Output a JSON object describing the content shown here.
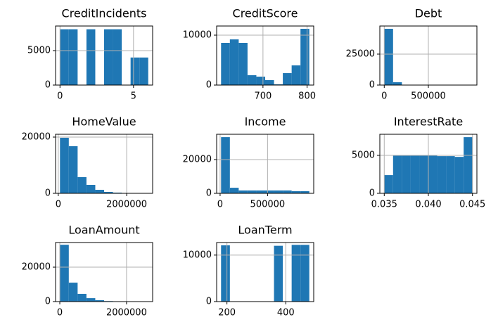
{
  "chart_data": [
    {
      "type": "histogram",
      "title": "CreditIncidents",
      "color": "#1f77b4",
      "grid": true,
      "bins": [
        0,
        0.6,
        1.2,
        1.8,
        2.4,
        3.0,
        3.6,
        4.2,
        4.8,
        5.4,
        6.0
      ],
      "values": [
        8100,
        8100,
        0,
        8100,
        0,
        8100,
        8100,
        0,
        4000,
        4000
      ],
      "xlim": [
        -0.3,
        6.3
      ],
      "ylim": [
        0,
        8571
      ],
      "xticks": [
        0,
        5
      ],
      "yticks": [
        0,
        5000
      ]
    },
    {
      "type": "histogram",
      "title": "CreditScore",
      "color": "#1f77b4",
      "grid": true,
      "bins": [
        605,
        625,
        645,
        665,
        685,
        705,
        725,
        745,
        765,
        785,
        805
      ],
      "values": [
        8450,
        9150,
        8450,
        1970,
        1690,
        990,
        140,
        2390,
        3940,
        11270
      ],
      "xlim": [
        595,
        815
      ],
      "ylim": [
        0,
        11830
      ],
      "xticks": [
        700,
        800
      ],
      "yticks": [
        0,
        10000
      ]
    },
    {
      "type": "histogram",
      "title": "Debt",
      "color": "#1f77b4",
      "grid": true,
      "bins": [
        0,
        100000,
        200000,
        300000,
        400000,
        500000,
        600000,
        700000,
        800000,
        900000,
        1000000
      ],
      "values": [
        45450,
        2300,
        200,
        50,
        20,
        10,
        5,
        2,
        1,
        1
      ],
      "xlim": [
        -50000,
        1050000
      ],
      "ylim": [
        0,
        47700
      ],
      "xticks": [
        0,
        500000
      ],
      "yticks": [
        0,
        25000
      ]
    },
    {
      "type": "histogram",
      "title": "HomeValue",
      "color": "#1f77b4",
      "grid": true,
      "bins": [
        50000,
        308000,
        566000,
        824000,
        1082000,
        1340000,
        1598000,
        1856000,
        2114000,
        2372000,
        2630000
      ],
      "values": [
        19750,
        16750,
        5750,
        3000,
        1250,
        500,
        250,
        100,
        50,
        20
      ],
      "xlim": [
        -79000,
        2759000
      ],
      "ylim": [
        0,
        21000
      ],
      "xticks": [
        0,
        2000000
      ],
      "yticks": [
        0,
        20000
      ]
    },
    {
      "type": "histogram",
      "title": "Income",
      "color": "#1f77b4",
      "grid": true,
      "bins": [
        10000,
        103000,
        196000,
        289000,
        382000,
        475000,
        568000,
        661000,
        754000,
        847000,
        940000
      ],
      "values": [
        33300,
        3300,
        1700,
        1700,
        1700,
        1700,
        1700,
        1700,
        1250,
        1250
      ],
      "xlim": [
        -36500,
        986500
      ],
      "ylim": [
        0,
        35000
      ],
      "xticks": [
        0,
        500000
      ],
      "yticks": [
        0,
        20000
      ]
    },
    {
      "type": "histogram",
      "title": "InterestRate",
      "color": "#1f77b4",
      "grid": true,
      "bins": [
        0.035,
        0.036,
        0.037,
        0.038,
        0.039,
        0.04,
        0.041,
        0.042,
        0.043,
        0.044,
        0.045
      ],
      "values": [
        2400,
        5000,
        5000,
        5000,
        5000,
        5000,
        4900,
        4900,
        4800,
        7400
      ],
      "xlim": [
        0.0345,
        0.0455
      ],
      "ylim": [
        0,
        7780
      ],
      "xticks": [
        0.035,
        {
          "value": 0.04,
          "label": "0.040"
        },
        0.045
      ],
      "yticks": [
        0,
        5000
      ]
    },
    {
      "type": "histogram",
      "title": "LoanAmount",
      "color": "#1f77b4",
      "grid": true,
      "bins": [
        5000,
        269500,
        534000,
        798500,
        1063000,
        1327500,
        1592000,
        1856500,
        2121000,
        2385500,
        2650000
      ],
      "values": [
        33000,
        11000,
        4500,
        2000,
        800,
        300,
        100,
        50,
        20,
        10
      ],
      "xlim": [
        -127000,
        2782000
      ],
      "ylim": [
        0,
        34300
      ],
      "xticks": [
        0,
        2000000
      ],
      "yticks": [
        0,
        20000
      ]
    },
    {
      "type": "histogram",
      "title": "LoanTerm",
      "color": "#1f77b4",
      "grid": true,
      "bins": [
        180,
        210,
        240,
        270,
        300,
        330,
        360,
        390,
        420,
        450,
        480
      ],
      "values": [
        12100,
        0,
        0,
        0,
        0,
        0,
        12000,
        0,
        12200,
        12200
      ],
      "xlim": [
        165,
        495
      ],
      "ylim": [
        0,
        12700
      ],
      "xticks": [
        200,
        400
      ],
      "yticks": [
        0,
        10000
      ]
    }
  ]
}
